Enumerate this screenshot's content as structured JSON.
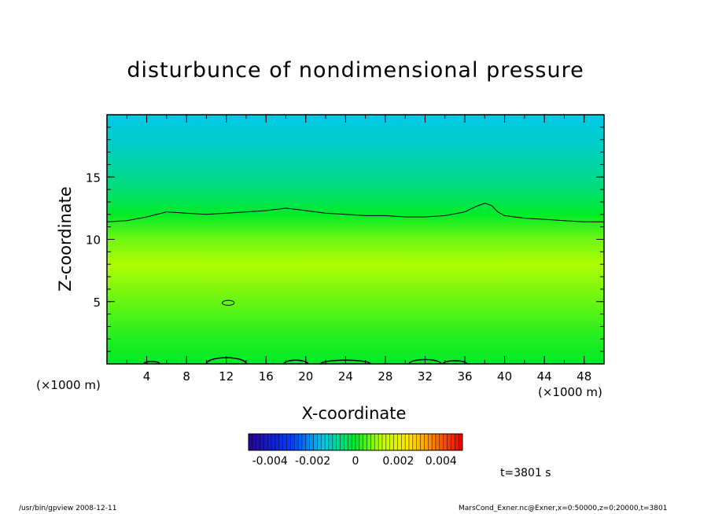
{
  "chart_data": {
    "type": "heatmap",
    "title": "disturbunce of nondimensional pressure",
    "xlabel": "X-coordinate",
    "ylabel": "Z-coordinate",
    "x_unit_left": "(×1000 m)",
    "x_unit_right": "(×1000 m)",
    "xlim": [
      0,
      50
    ],
    "ylim": [
      0,
      20
    ],
    "x_ticks": [
      {
        "value": 4,
        "label": "4"
      },
      {
        "value": 8,
        "label": "8"
      },
      {
        "value": 12,
        "label": "12"
      },
      {
        "value": 16,
        "label": "16"
      },
      {
        "value": 20,
        "label": "20"
      },
      {
        "value": 24,
        "label": "24"
      },
      {
        "value": 28,
        "label": "28"
      },
      {
        "value": 32,
        "label": "32"
      },
      {
        "value": 36,
        "label": "36"
      },
      {
        "value": 40,
        "label": "40"
      },
      {
        "value": 44,
        "label": "44"
      },
      {
        "value": 48,
        "label": "48"
      }
    ],
    "y_ticks": [
      {
        "value": 5,
        "label": "5"
      },
      {
        "value": 10,
        "label": "10"
      },
      {
        "value": 15,
        "label": "15"
      }
    ],
    "field_profile": {
      "z": [
        0,
        2,
        4,
        6,
        8,
        10,
        12,
        14,
        16,
        18,
        20
      ],
      "value": [
        0.0,
        0.0002,
        0.0005,
        0.0008,
        0.0011,
        0.0007,
        0.0,
        -0.0006,
        -0.001,
        -0.0013,
        -0.0015
      ]
    },
    "zero_contour": {
      "x": [
        0,
        2,
        4,
        6,
        8,
        10,
        12,
        14,
        16,
        18,
        20,
        22,
        24,
        26,
        28,
        30,
        32,
        34,
        36,
        37,
        38,
        38.7,
        39.3,
        40,
        42,
        44,
        46,
        48,
        50
      ],
      "z": [
        11.4,
        11.5,
        11.8,
        12.2,
        12.1,
        12.0,
        12.1,
        12.2,
        12.3,
        12.5,
        12.3,
        12.1,
        12.0,
        11.9,
        11.9,
        11.8,
        11.8,
        11.9,
        12.2,
        12.6,
        12.9,
        12.7,
        12.2,
        11.9,
        11.7,
        11.6,
        11.5,
        11.4,
        11.4
      ]
    },
    "small_contours": [
      {
        "x_center": 12.2,
        "z_center": 4.9,
        "x_radius": 0.6,
        "z_radius": 0.2
      },
      {
        "x_center": 4.5,
        "z_center": 0,
        "x_radius": 0.8,
        "z_radius": 0.2
      },
      {
        "x_center": 12.0,
        "z_center": 0,
        "x_radius": 2.0,
        "z_radius": 0.5
      },
      {
        "x_center": 19.0,
        "z_center": 0,
        "x_radius": 1.2,
        "z_radius": 0.3
      },
      {
        "x_center": 24.0,
        "z_center": 0,
        "x_radius": 2.5,
        "z_radius": 0.3
      },
      {
        "x_center": 32.0,
        "z_center": 0,
        "x_radius": 1.6,
        "z_radius": 0.35
      },
      {
        "x_center": 35.0,
        "z_center": 0,
        "x_radius": 1.2,
        "z_radius": 0.25
      }
    ],
    "colorbar": {
      "min": -0.005,
      "max": 0.005,
      "tick_labels": [
        {
          "value": -0.004,
          "label": "-0.004"
        },
        {
          "value": -0.002,
          "label": "-0.002"
        },
        {
          "value": 0,
          "label": "0"
        },
        {
          "value": 0.002,
          "label": "0.002"
        },
        {
          "value": 0.004,
          "label": "0.004"
        }
      ]
    }
  },
  "annotations": {
    "time": "t=3801 s",
    "footer_left": "/usr/bin/gpview   2008-12-11",
    "footer_right": "MarsCond_Exner.nc@Exner,x=0:50000,z=0:20000,t=3801"
  }
}
